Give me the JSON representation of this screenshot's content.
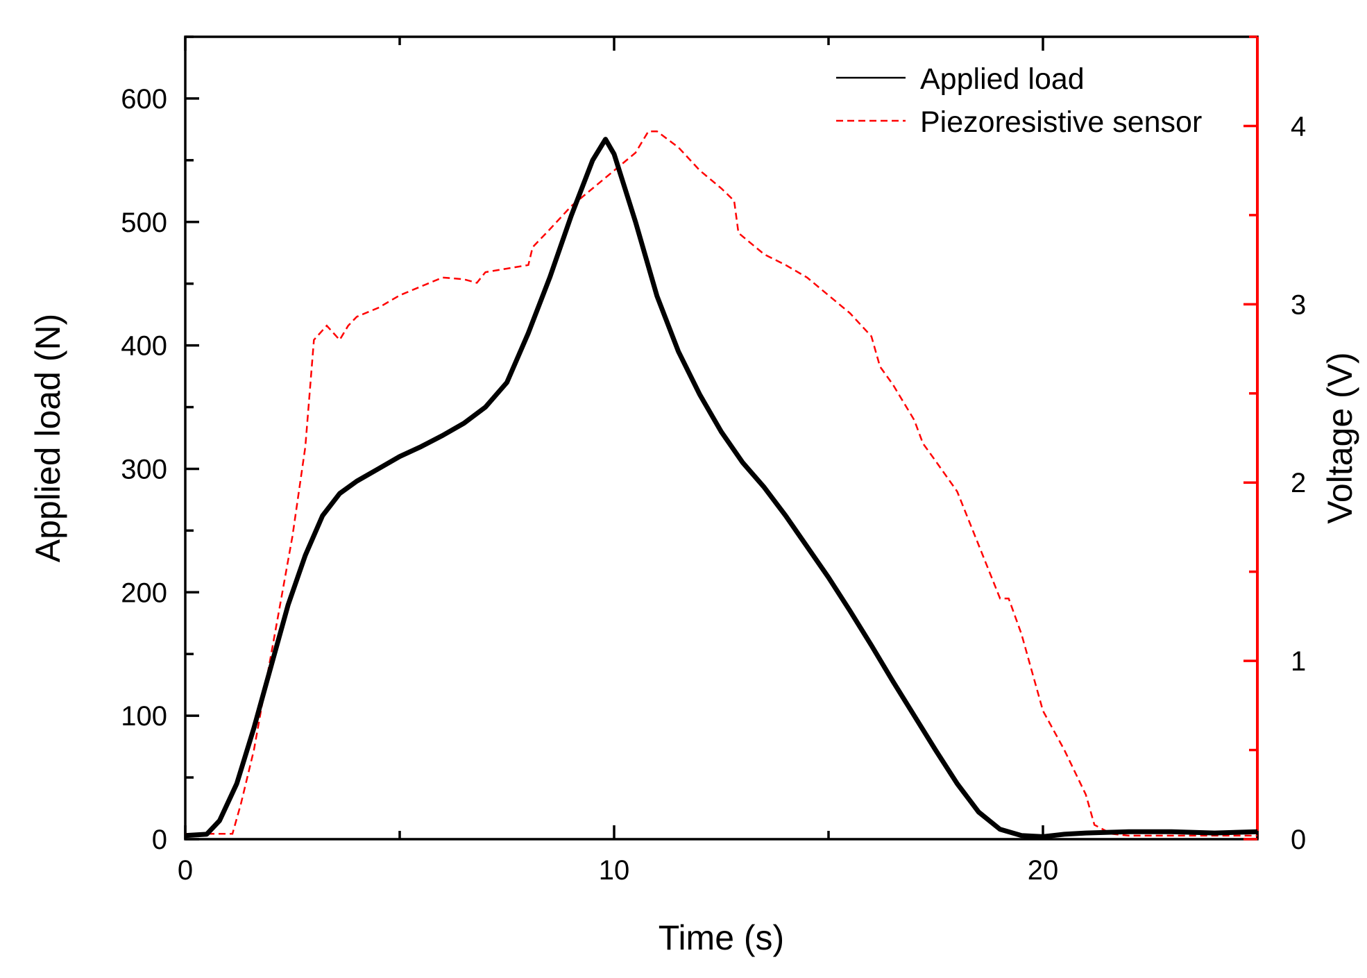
{
  "chart_data": {
    "type": "line",
    "title": "",
    "xlabel": "Time (s)",
    "ylabel": "Applied load (N)",
    "y2label": "Voltage (V)",
    "xlim": [
      0,
      25
    ],
    "ylim": [
      0,
      650
    ],
    "y2lim": [
      0,
      4.5
    ],
    "x_ticks": [
      0,
      10,
      20
    ],
    "y_ticks": [
      0,
      100,
      200,
      300,
      400,
      500,
      600
    ],
    "y2_ticks": [
      0,
      1,
      2,
      3,
      4
    ],
    "legend_position": "top-right",
    "colors": {
      "load": "#000000",
      "voltage": "#ff0000",
      "right_axis": "#ff0000"
    },
    "series": [
      {
        "name": "Applied load",
        "axis": "left",
        "style": "solid",
        "x": [
          0,
          0.5,
          0.8,
          1.2,
          1.6,
          2.0,
          2.4,
          2.8,
          3.2,
          3.6,
          4.0,
          4.5,
          5.0,
          5.5,
          6.0,
          6.5,
          7.0,
          7.5,
          8.0,
          8.5,
          9.0,
          9.5,
          9.8,
          10.0,
          10.5,
          11.0,
          11.5,
          12.0,
          12.5,
          13.0,
          13.5,
          14.0,
          14.5,
          15.0,
          15.5,
          16.0,
          16.5,
          17.0,
          17.5,
          18.0,
          18.5,
          19.0,
          19.5,
          20.0,
          20.5,
          21.0,
          22.0,
          23.0,
          24.0,
          25.0
        ],
        "values": [
          3,
          4,
          15,
          45,
          90,
          140,
          190,
          230,
          262,
          280,
          290,
          300,
          310,
          318,
          327,
          337,
          350,
          370,
          410,
          455,
          505,
          550,
          567,
          555,
          500,
          440,
          395,
          360,
          330,
          305,
          285,
          262,
          237,
          212,
          185,
          157,
          128,
          100,
          72,
          45,
          22,
          8,
          3,
          2,
          4,
          5,
          6,
          6,
          5,
          6
        ]
      },
      {
        "name": "Piezoresistive sensor",
        "axis": "right",
        "style": "dashed",
        "x": [
          0,
          1.1,
          1.3,
          1.6,
          1.9,
          2.2,
          2.5,
          2.8,
          3.0,
          3.3,
          3.6,
          3.8,
          4.0,
          4.5,
          5.0,
          5.5,
          6.0,
          6.5,
          6.8,
          7.0,
          7.5,
          8.0,
          8.1,
          8.5,
          9.0,
          9.5,
          10.0,
          10.5,
          10.8,
          11.0,
          11.5,
          12.0,
          12.5,
          12.8,
          12.9,
          13.5,
          14.0,
          14.5,
          15.0,
          15.5,
          16.0,
          16.2,
          16.5,
          17.0,
          17.2,
          17.5,
          18.0,
          18.5,
          19.0,
          19.2,
          19.5,
          20.0,
          20.5,
          21.0,
          21.2,
          21.6,
          22.0,
          23.0,
          24.0,
          25.0
        ],
        "values": [
          0.03,
          0.03,
          0.2,
          0.5,
          0.9,
          1.3,
          1.7,
          2.2,
          2.8,
          2.88,
          2.8,
          2.88,
          2.93,
          2.98,
          3.05,
          3.1,
          3.15,
          3.14,
          3.12,
          3.18,
          3.2,
          3.22,
          3.32,
          3.42,
          3.55,
          3.65,
          3.75,
          3.85,
          3.97,
          3.97,
          3.88,
          3.75,
          3.65,
          3.58,
          3.4,
          3.28,
          3.22,
          3.15,
          3.05,
          2.95,
          2.82,
          2.65,
          2.55,
          2.35,
          2.22,
          2.12,
          1.95,
          1.65,
          1.35,
          1.35,
          1.15,
          0.72,
          0.5,
          0.25,
          0.08,
          0.03,
          0.02,
          0.02,
          0.02,
          0.02
        ]
      }
    ]
  }
}
